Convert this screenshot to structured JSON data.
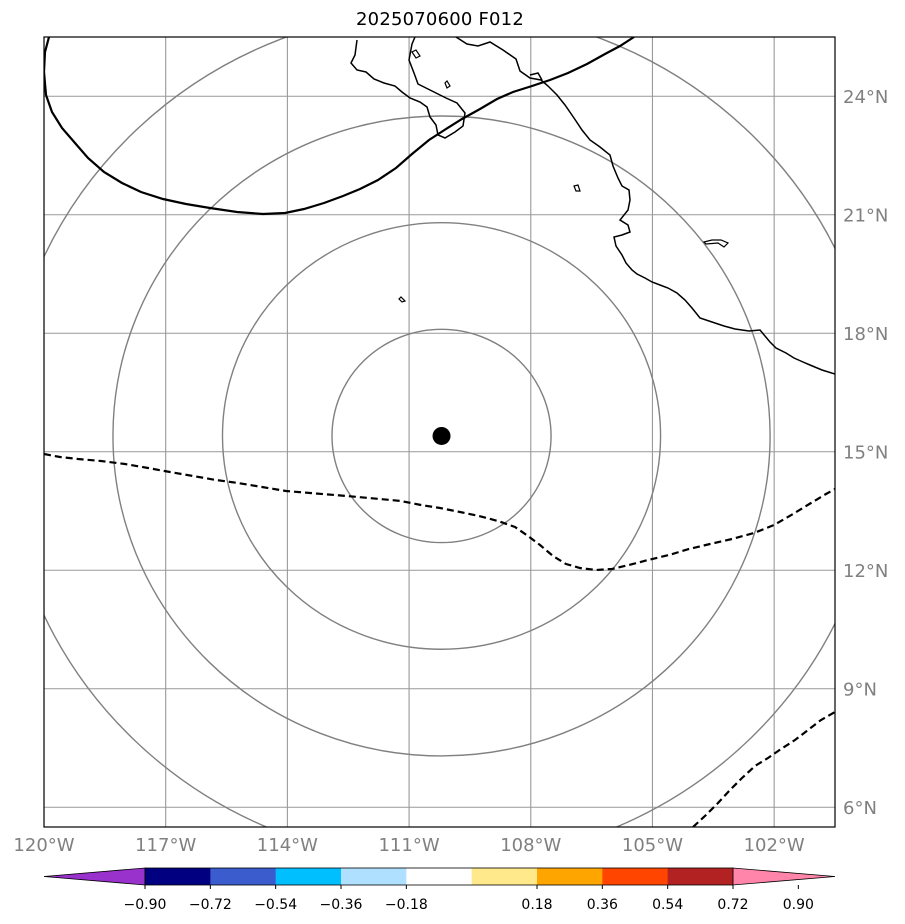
{
  "title": "2025070600 F012",
  "map": {
    "lon_range": [
      -120,
      -100.5
    ],
    "lat_range": [
      5.5,
      25.5
    ],
    "center": {
      "lon": -110.2,
      "lat": 15.4
    },
    "range_ring_radius_deg": [
      2.7,
      5.4,
      8.1,
      10.8
    ],
    "lon_ticks": [
      {
        "value": -120,
        "label": "120°W"
      },
      {
        "value": -117,
        "label": "117°W"
      },
      {
        "value": -114,
        "label": "114°W"
      },
      {
        "value": -111,
        "label": "111°W"
      },
      {
        "value": -108,
        "label": "108°W"
      },
      {
        "value": -105,
        "label": "105°W"
      },
      {
        "value": -102,
        "label": "102°W"
      }
    ],
    "lat_ticks": [
      {
        "value": 24,
        "label": "24°N"
      },
      {
        "value": 21,
        "label": "21°N"
      },
      {
        "value": 18,
        "label": "18°N"
      },
      {
        "value": 15,
        "label": "15°N"
      },
      {
        "value": 12,
        "label": "12°N"
      },
      {
        "value": 9,
        "label": "9°N"
      },
      {
        "value": 6,
        "label": "6°N"
      }
    ],
    "gridline_color": "#999999",
    "ring_color": "#808080",
    "center_marker_color": "#000000"
  },
  "colorbar": {
    "under_color": "#9932cc",
    "over_color": "#ff85aa",
    "colors": [
      "#000080",
      "#3a5ccc",
      "#00bfff",
      "#b0e0ff",
      "#ffffff",
      "#ffe98a",
      "#ffa500",
      "#ff4500",
      "#b22222"
    ],
    "ticks": [
      {
        "value": -0.9,
        "label": "−0.90"
      },
      {
        "value": -0.72,
        "label": "−0.72"
      },
      {
        "value": -0.54,
        "label": "−0.54"
      },
      {
        "value": -0.36,
        "label": "−0.36"
      },
      {
        "value": -0.18,
        "label": "−0.18"
      },
      {
        "value": 0.18,
        "label": "0.18"
      },
      {
        "value": 0.36,
        "label": "0.36"
      },
      {
        "value": 0.54,
        "label": "0.54"
      },
      {
        "value": 0.72,
        "label": "0.72"
      },
      {
        "value": 0.9,
        "label": "0.90"
      }
    ]
  }
}
